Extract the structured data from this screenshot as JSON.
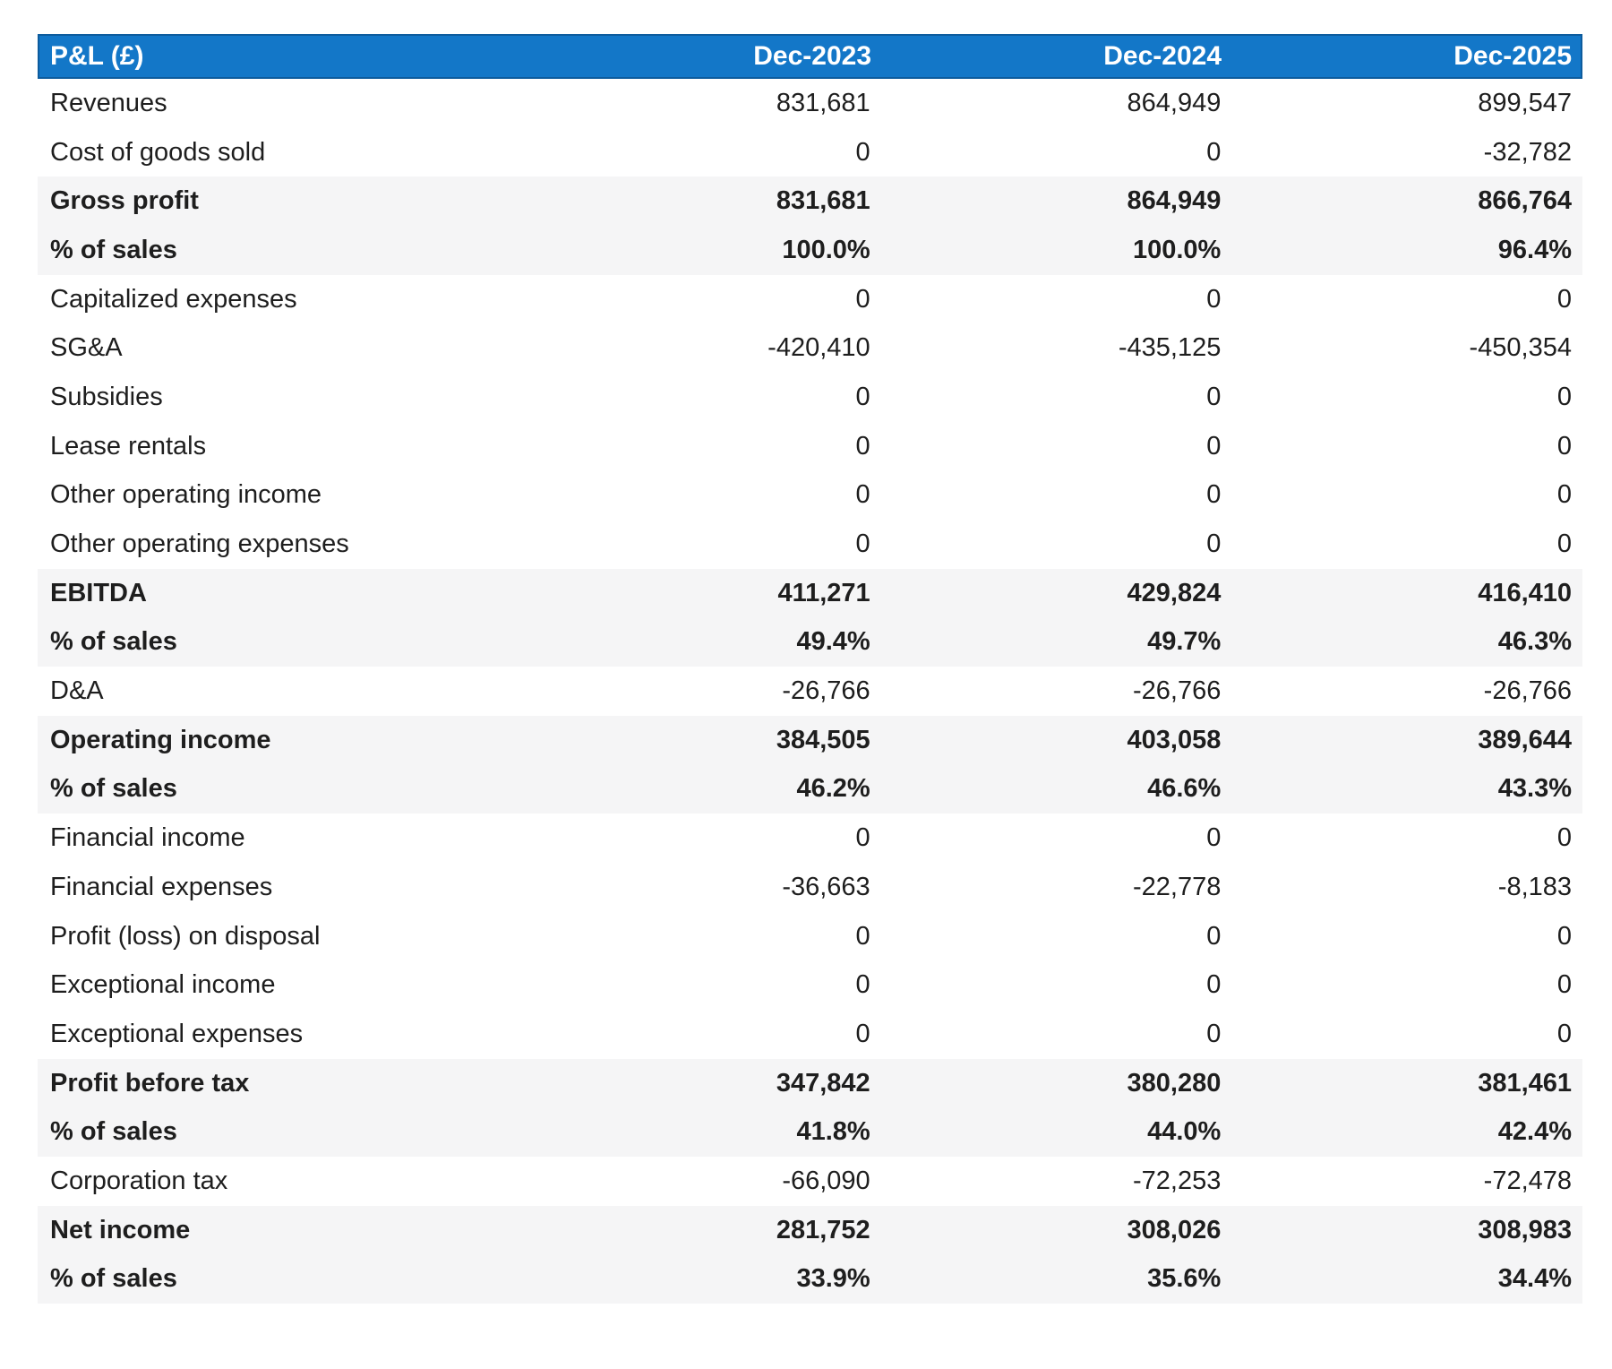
{
  "colors": {
    "header_bg": "#1377c8",
    "header_border": "#0d5c9e",
    "header_text": "#ffffff",
    "stripe": "#f5f5f6",
    "text": "#1e1e1e"
  },
  "chart_data": {
    "type": "table",
    "title": "P&L (£)",
    "columns": [
      "P&L (£)",
      "Dec-2023",
      "Dec-2024",
      "Dec-2025"
    ],
    "rows": [
      {
        "label": "Revenues",
        "emphasis": false,
        "values": [
          "831,681",
          "864,949",
          "899,547"
        ]
      },
      {
        "label": "Cost of goods sold",
        "emphasis": false,
        "values": [
          "0",
          "0",
          "-32,782"
        ]
      },
      {
        "label": "Gross profit",
        "emphasis": true,
        "values": [
          "831,681",
          "864,949",
          "866,764"
        ]
      },
      {
        "label": "% of sales",
        "emphasis": true,
        "values": [
          "100.0%",
          "100.0%",
          "96.4%"
        ]
      },
      {
        "label": "Capitalized expenses",
        "emphasis": false,
        "values": [
          "0",
          "0",
          "0"
        ]
      },
      {
        "label": "SG&A",
        "emphasis": false,
        "values": [
          "-420,410",
          "-435,125",
          "-450,354"
        ]
      },
      {
        "label": "Subsidies",
        "emphasis": false,
        "values": [
          "0",
          "0",
          "0"
        ]
      },
      {
        "label": "Lease rentals",
        "emphasis": false,
        "values": [
          "0",
          "0",
          "0"
        ]
      },
      {
        "label": "Other operating income",
        "emphasis": false,
        "values": [
          "0",
          "0",
          "0"
        ]
      },
      {
        "label": "Other operating expenses",
        "emphasis": false,
        "values": [
          "0",
          "0",
          "0"
        ]
      },
      {
        "label": "EBITDA",
        "emphasis": true,
        "values": [
          "411,271",
          "429,824",
          "416,410"
        ]
      },
      {
        "label": "% of sales",
        "emphasis": true,
        "values": [
          "49.4%",
          "49.7%",
          "46.3%"
        ]
      },
      {
        "label": "D&A",
        "emphasis": false,
        "values": [
          "-26,766",
          "-26,766",
          "-26,766"
        ]
      },
      {
        "label": "Operating income",
        "emphasis": true,
        "values": [
          "384,505",
          "403,058",
          "389,644"
        ]
      },
      {
        "label": "% of sales",
        "emphasis": true,
        "values": [
          "46.2%",
          "46.6%",
          "43.3%"
        ]
      },
      {
        "label": "Financial income",
        "emphasis": false,
        "values": [
          "0",
          "0",
          "0"
        ]
      },
      {
        "label": "Financial expenses",
        "emphasis": false,
        "values": [
          "-36,663",
          "-22,778",
          "-8,183"
        ]
      },
      {
        "label": "Profit (loss) on disposal",
        "emphasis": false,
        "values": [
          "0",
          "0",
          "0"
        ]
      },
      {
        "label": "Exceptional income",
        "emphasis": false,
        "values": [
          "0",
          "0",
          "0"
        ]
      },
      {
        "label": "Exceptional expenses",
        "emphasis": false,
        "values": [
          "0",
          "0",
          "0"
        ]
      },
      {
        "label": "Profit before tax",
        "emphasis": true,
        "values": [
          "347,842",
          "380,280",
          "381,461"
        ]
      },
      {
        "label": "% of sales",
        "emphasis": true,
        "values": [
          "41.8%",
          "44.0%",
          "42.4%"
        ]
      },
      {
        "label": "Corporation tax",
        "emphasis": false,
        "values": [
          "-66,090",
          "-72,253",
          "-72,478"
        ]
      },
      {
        "label": "Net income",
        "emphasis": true,
        "values": [
          "281,752",
          "308,026",
          "308,983"
        ]
      },
      {
        "label": "% of sales",
        "emphasis": true,
        "values": [
          "33.9%",
          "35.6%",
          "34.4%"
        ]
      }
    ]
  }
}
